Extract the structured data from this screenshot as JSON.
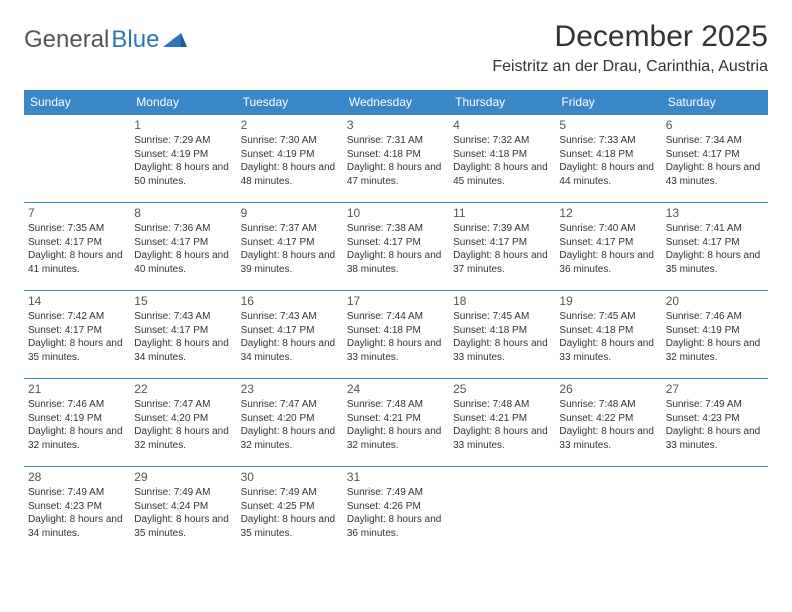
{
  "brand": {
    "part1": "General",
    "part2": "Blue"
  },
  "title": "December 2025",
  "location": "Feistritz an der Drau, Carinthia, Austria",
  "style": {
    "accent_color": "#3a87c8",
    "logo_gray": "#6b6b6b",
    "text_color": "#333333",
    "background": "#ffffff",
    "header_font_size": 30,
    "cell_font_size": 10
  },
  "calendar": {
    "type": "table",
    "columns": [
      "Sunday",
      "Monday",
      "Tuesday",
      "Wednesday",
      "Thursday",
      "Friday",
      "Saturday"
    ],
    "leading_blank": 1,
    "days": [
      {
        "n": "1",
        "sunrise": "7:29 AM",
        "sunset": "4:19 PM",
        "daylight": "8 hours and 50 minutes."
      },
      {
        "n": "2",
        "sunrise": "7:30 AM",
        "sunset": "4:19 PM",
        "daylight": "8 hours and 48 minutes."
      },
      {
        "n": "3",
        "sunrise": "7:31 AM",
        "sunset": "4:18 PM",
        "daylight": "8 hours and 47 minutes."
      },
      {
        "n": "4",
        "sunrise": "7:32 AM",
        "sunset": "4:18 PM",
        "daylight": "8 hours and 45 minutes."
      },
      {
        "n": "5",
        "sunrise": "7:33 AM",
        "sunset": "4:18 PM",
        "daylight": "8 hours and 44 minutes."
      },
      {
        "n": "6",
        "sunrise": "7:34 AM",
        "sunset": "4:17 PM",
        "daylight": "8 hours and 43 minutes."
      },
      {
        "n": "7",
        "sunrise": "7:35 AM",
        "sunset": "4:17 PM",
        "daylight": "8 hours and 41 minutes."
      },
      {
        "n": "8",
        "sunrise": "7:36 AM",
        "sunset": "4:17 PM",
        "daylight": "8 hours and 40 minutes."
      },
      {
        "n": "9",
        "sunrise": "7:37 AM",
        "sunset": "4:17 PM",
        "daylight": "8 hours and 39 minutes."
      },
      {
        "n": "10",
        "sunrise": "7:38 AM",
        "sunset": "4:17 PM",
        "daylight": "8 hours and 38 minutes."
      },
      {
        "n": "11",
        "sunrise": "7:39 AM",
        "sunset": "4:17 PM",
        "daylight": "8 hours and 37 minutes."
      },
      {
        "n": "12",
        "sunrise": "7:40 AM",
        "sunset": "4:17 PM",
        "daylight": "8 hours and 36 minutes."
      },
      {
        "n": "13",
        "sunrise": "7:41 AM",
        "sunset": "4:17 PM",
        "daylight": "8 hours and 35 minutes."
      },
      {
        "n": "14",
        "sunrise": "7:42 AM",
        "sunset": "4:17 PM",
        "daylight": "8 hours and 35 minutes."
      },
      {
        "n": "15",
        "sunrise": "7:43 AM",
        "sunset": "4:17 PM",
        "daylight": "8 hours and 34 minutes."
      },
      {
        "n": "16",
        "sunrise": "7:43 AM",
        "sunset": "4:17 PM",
        "daylight": "8 hours and 34 minutes."
      },
      {
        "n": "17",
        "sunrise": "7:44 AM",
        "sunset": "4:18 PM",
        "daylight": "8 hours and 33 minutes."
      },
      {
        "n": "18",
        "sunrise": "7:45 AM",
        "sunset": "4:18 PM",
        "daylight": "8 hours and 33 minutes."
      },
      {
        "n": "19",
        "sunrise": "7:45 AM",
        "sunset": "4:18 PM",
        "daylight": "8 hours and 33 minutes."
      },
      {
        "n": "20",
        "sunrise": "7:46 AM",
        "sunset": "4:19 PM",
        "daylight": "8 hours and 32 minutes."
      },
      {
        "n": "21",
        "sunrise": "7:46 AM",
        "sunset": "4:19 PM",
        "daylight": "8 hours and 32 minutes."
      },
      {
        "n": "22",
        "sunrise": "7:47 AM",
        "sunset": "4:20 PM",
        "daylight": "8 hours and 32 minutes."
      },
      {
        "n": "23",
        "sunrise": "7:47 AM",
        "sunset": "4:20 PM",
        "daylight": "8 hours and 32 minutes."
      },
      {
        "n": "24",
        "sunrise": "7:48 AM",
        "sunset": "4:21 PM",
        "daylight": "8 hours and 32 minutes."
      },
      {
        "n": "25",
        "sunrise": "7:48 AM",
        "sunset": "4:21 PM",
        "daylight": "8 hours and 33 minutes."
      },
      {
        "n": "26",
        "sunrise": "7:48 AM",
        "sunset": "4:22 PM",
        "daylight": "8 hours and 33 minutes."
      },
      {
        "n": "27",
        "sunrise": "7:49 AM",
        "sunset": "4:23 PM",
        "daylight": "8 hours and 33 minutes."
      },
      {
        "n": "28",
        "sunrise": "7:49 AM",
        "sunset": "4:23 PM",
        "daylight": "8 hours and 34 minutes."
      },
      {
        "n": "29",
        "sunrise": "7:49 AM",
        "sunset": "4:24 PM",
        "daylight": "8 hours and 35 minutes."
      },
      {
        "n": "30",
        "sunrise": "7:49 AM",
        "sunset": "4:25 PM",
        "daylight": "8 hours and 35 minutes."
      },
      {
        "n": "31",
        "sunrise": "7:49 AM",
        "sunset": "4:26 PM",
        "daylight": "8 hours and 36 minutes."
      }
    ]
  },
  "labels": {
    "sunrise_prefix": "Sunrise: ",
    "sunset_prefix": "Sunset: ",
    "daylight_prefix": "Daylight: "
  }
}
